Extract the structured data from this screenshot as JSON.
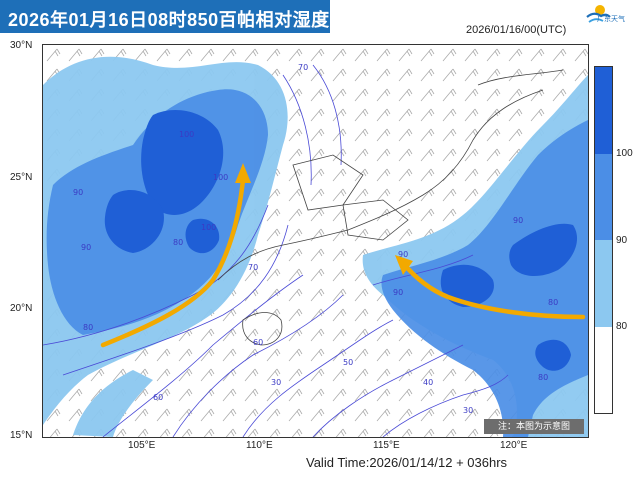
{
  "title": "2026年01月16日08时850百帕相对湿度",
  "logo_text": "广东天气",
  "init_time": "2026/01/16/00(UTC)",
  "valid_time": "Valid Time:2026/01/14/12 + 036hrs",
  "note": "注：本图为示意图",
  "lat_labels": [
    "30°N",
    "25°N",
    "20°N",
    "15°N"
  ],
  "lon_labels": [
    "105°E",
    "110°E",
    "115°E",
    "120°E"
  ],
  "colorbar": {
    "labels": [
      "100",
      "90",
      "80"
    ],
    "colors": [
      "#1f5fd6",
      "#4b8ee6",
      "#8cc8f0",
      "#ffffff"
    ]
  },
  "contour_labels": [
    "100",
    "100",
    "100",
    "90",
    "90",
    "90",
    "90",
    "90",
    "80",
    "80",
    "80",
    "80",
    "70",
    "70",
    "60",
    "60",
    "50",
    "40",
    "30",
    "30"
  ],
  "colors": {
    "title_bg": "#1e6fb8",
    "arrow": "#f2a900",
    "rh_100": "#1f5fd6",
    "rh_90": "#4b8ee6",
    "rh_80": "#8cc8f0",
    "contour": "#4a4ad6"
  }
}
